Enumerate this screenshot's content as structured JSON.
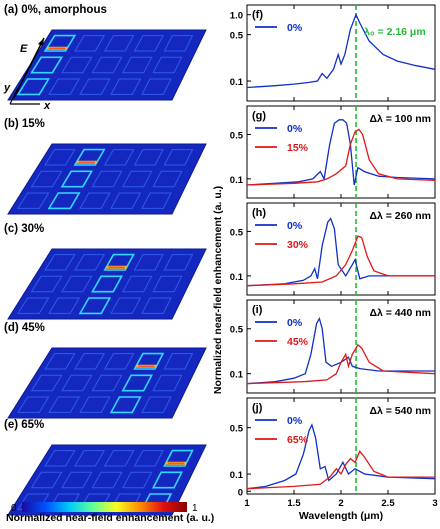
{
  "left_panels": [
    {
      "label": "(a) 0%, amorphous",
      "hotspot_col": 0
    },
    {
      "label": "(b) 15%",
      "hotspot_col": 1
    },
    {
      "label": "(c) 30%",
      "hotspot_col": 2
    },
    {
      "label": "(d) 45%",
      "hotspot_col": 3
    },
    {
      "label": "(e) 65%",
      "hotspot_col": 4
    }
  ],
  "axes_markers": {
    "e_field": "E",
    "x_axis": "x",
    "y_axis": "y"
  },
  "colorbar": {
    "min_label": "0",
    "max_label": "1",
    "title": "Normalized near-field enhancement (a. u.)",
    "colors": [
      "#1a0aa0",
      "#0050ff",
      "#00c8ff",
      "#60ff9a",
      "#f8ff20",
      "#ff8c00",
      "#e01010",
      "#8a0000"
    ]
  },
  "chart_data": {
    "type": "line",
    "xlabel": "Wavelength (μm)",
    "ylabel": "Normalized near-field enhancement (a. u.)",
    "xlim": [
      1,
      3
    ],
    "x_ticks": [
      "1",
      "1.5",
      "2",
      "2.5",
      "3"
    ],
    "y_scale": "log",
    "reference_line": {
      "x": 2.16,
      "label": "λ₀ = 2.16 μm",
      "color": "#22bb33"
    },
    "colors": {
      "0%": "#1030c8",
      "other": "#e01818"
    },
    "panels": [
      {
        "label": "(f)",
        "annotation": "",
        "y_ticks": [
          "1.0",
          "0.5",
          "0.1"
        ],
        "series": [
          {
            "name": "0%",
            "points": [
              [
                1.0,
                0.08
              ],
              [
                1.3,
                0.085
              ],
              [
                1.5,
                0.09
              ],
              [
                1.65,
                0.095
              ],
              [
                1.75,
                0.1
              ],
              [
                1.8,
                0.13
              ],
              [
                1.85,
                0.11
              ],
              [
                1.92,
                0.15
              ],
              [
                1.97,
                0.25
              ],
              [
                2.0,
                0.18
              ],
              [
                2.04,
                0.25
              ],
              [
                2.1,
                0.6
              ],
              [
                2.16,
                1.0
              ],
              [
                2.2,
                0.75
              ],
              [
                2.3,
                0.4
              ],
              [
                2.45,
                0.25
              ],
              [
                2.6,
                0.2
              ],
              [
                2.8,
                0.17
              ],
              [
                3.0,
                0.15
              ]
            ]
          }
        ]
      },
      {
        "label": "(g)",
        "annotation": "Δλ = 100 nm",
        "y_ticks": [
          "0.5",
          "0.1"
        ],
        "series": [
          {
            "name": "0%",
            "points": [
              [
                1.0,
                0.08
              ],
              [
                1.3,
                0.085
              ],
              [
                1.55,
                0.09
              ],
              [
                1.7,
                0.1
              ],
              [
                1.78,
                0.13
              ],
              [
                1.82,
                0.1
              ],
              [
                1.88,
                0.35
              ],
              [
                1.93,
                0.75
              ],
              [
                1.98,
                0.85
              ],
              [
                2.02,
                0.85
              ],
              [
                2.06,
                0.75
              ],
              [
                2.1,
                0.35
              ],
              [
                2.14,
                0.08
              ],
              [
                2.18,
                0.15
              ],
              [
                2.25,
                0.13
              ],
              [
                2.4,
                0.11
              ],
              [
                2.6,
                0.105
              ],
              [
                3.0,
                0.1
              ]
            ]
          },
          {
            "name": "15%",
            "points": [
              [
                1.0,
                0.08
              ],
              [
                1.5,
                0.085
              ],
              [
                1.75,
                0.09
              ],
              [
                1.85,
                0.1
              ],
              [
                1.95,
                0.12
              ],
              [
                2.05,
                0.16
              ],
              [
                2.1,
                0.35
              ],
              [
                2.15,
                0.55
              ],
              [
                2.19,
                0.6
              ],
              [
                2.23,
                0.5
              ],
              [
                2.3,
                0.2
              ],
              [
                2.4,
                0.12
              ],
              [
                2.6,
                0.1
              ],
              [
                3.0,
                0.095
              ]
            ]
          }
        ]
      },
      {
        "label": "(h)",
        "annotation": "Δλ = 260 nm",
        "y_ticks": [
          "0.5",
          "0.1"
        ],
        "series": [
          {
            "name": "0%",
            "points": [
              [
                1.0,
                0.07
              ],
              [
                1.4,
                0.075
              ],
              [
                1.6,
                0.085
              ],
              [
                1.68,
                0.1
              ],
              [
                1.72,
                0.13
              ],
              [
                1.75,
                0.09
              ],
              [
                1.8,
                0.3
              ],
              [
                1.86,
                0.7
              ],
              [
                1.89,
                0.8
              ],
              [
                1.93,
                0.55
              ],
              [
                1.97,
                0.15
              ],
              [
                2.05,
                0.1
              ],
              [
                2.12,
                0.15
              ],
              [
                2.15,
                0.18
              ],
              [
                2.2,
                0.09
              ],
              [
                2.3,
                0.1
              ],
              [
                2.6,
                0.1
              ],
              [
                3.0,
                0.1
              ]
            ]
          },
          {
            "name": "30%",
            "points": [
              [
                1.0,
                0.07
              ],
              [
                1.5,
                0.075
              ],
              [
                1.8,
                0.08
              ],
              [
                1.95,
                0.1
              ],
              [
                2.05,
                0.15
              ],
              [
                2.12,
                0.25
              ],
              [
                2.18,
                0.42
              ],
              [
                2.22,
                0.4
              ],
              [
                2.28,
                0.2
              ],
              [
                2.35,
                0.12
              ],
              [
                2.5,
                0.1
              ],
              [
                3.0,
                0.1
              ]
            ]
          }
        ]
      },
      {
        "label": "(i)",
        "annotation": "Δλ = 440 nm",
        "y_ticks": [
          "0.5",
          "0.1"
        ],
        "series": [
          {
            "name": "0%",
            "points": [
              [
                1.0,
                0.07
              ],
              [
                1.3,
                0.075
              ],
              [
                1.5,
                0.085
              ],
              [
                1.62,
                0.1
              ],
              [
                1.68,
                0.2
              ],
              [
                1.74,
                0.6
              ],
              [
                1.77,
                0.72
              ],
              [
                1.8,
                0.5
              ],
              [
                1.84,
                0.15
              ],
              [
                1.9,
                0.13
              ],
              [
                2.0,
                0.15
              ],
              [
                2.08,
                0.18
              ],
              [
                2.12,
                0.13
              ],
              [
                2.2,
                0.12
              ],
              [
                2.4,
                0.11
              ],
              [
                3.0,
                0.11
              ]
            ]
          },
          {
            "name": "45%",
            "points": [
              [
                1.0,
                0.07
              ],
              [
                1.6,
                0.075
              ],
              [
                1.85,
                0.08
              ],
              [
                1.95,
                0.1
              ],
              [
                2.0,
                0.15
              ],
              [
                2.05,
                0.2
              ],
              [
                2.08,
                0.13
              ],
              [
                2.12,
                0.2
              ],
              [
                2.18,
                0.28
              ],
              [
                2.22,
                0.25
              ],
              [
                2.3,
                0.15
              ],
              [
                2.45,
                0.11
              ],
              [
                3.0,
                0.1
              ]
            ]
          }
        ]
      },
      {
        "label": "(j)",
        "annotation": "Δλ = 540 nm",
        "y_ticks": [
          "0.5",
          "0.1",
          "0"
        ],
        "series": [
          {
            "name": "0%",
            "points": [
              [
                1.0,
                0.06
              ],
              [
                1.2,
                0.065
              ],
              [
                1.4,
                0.08
              ],
              [
                1.52,
                0.1
              ],
              [
                1.6,
                0.2
              ],
              [
                1.66,
                0.45
              ],
              [
                1.69,
                0.55
              ],
              [
                1.73,
                0.35
              ],
              [
                1.78,
                0.12
              ],
              [
                1.83,
                0.13
              ],
              [
                1.87,
                0.08
              ],
              [
                1.95,
                0.1
              ],
              [
                2.02,
                0.15
              ],
              [
                2.08,
                0.1
              ],
              [
                2.15,
                0.12
              ],
              [
                2.25,
                0.1
              ],
              [
                2.5,
                0.09
              ],
              [
                3.0,
                0.085
              ]
            ]
          },
          {
            "name": "65%",
            "points": [
              [
                1.0,
                0.06
              ],
              [
                1.5,
                0.065
              ],
              [
                1.78,
                0.07
              ],
              [
                1.88,
                0.09
              ],
              [
                1.95,
                0.12
              ],
              [
                2.0,
                0.1
              ],
              [
                2.05,
                0.14
              ],
              [
                2.1,
                0.17
              ],
              [
                2.15,
                0.15
              ],
              [
                2.2,
                0.22
              ],
              [
                2.25,
                0.18
              ],
              [
                2.35,
                0.11
              ],
              [
                2.5,
                0.09
              ],
              [
                3.0,
                0.09
              ]
            ]
          }
        ]
      }
    ]
  }
}
